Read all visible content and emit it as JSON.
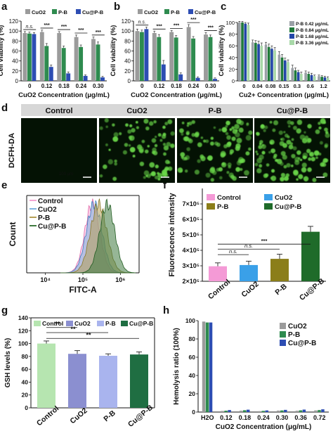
{
  "panels": {
    "a": "a",
    "b": "b",
    "c": "c",
    "d": "d",
    "e": "e",
    "f": "f",
    "g": "g",
    "h": "h"
  },
  "colors": {
    "cuo2": "#9b9b9b",
    "pb": "#2e8b4f",
    "cup": "#2d4db3",
    "c_pb042": "#9aa0a6",
    "c_pb084": "#1f7a3a",
    "c_pb168": "#2346a8",
    "c_pb336": "#a8d8a8",
    "f_control": "#f49ad6",
    "f_cuo2": "#3aa0e8",
    "f_pb": "#8b7e1a",
    "f_cup": "#1f6b2a",
    "g_control": "#b6e5b0",
    "g_cuo2": "#8b8fd0",
    "g_pb": "#a9b4ee",
    "g_cup": "#1f6e42",
    "e_control": "#f4a6d4",
    "e_cuo2": "#7fb3e0",
    "e_pb": "#b59f55",
    "e_cup": "#3f7a3f",
    "green_cell": "#6bd84a"
  },
  "panel_d": {
    "ylabel": "DCFH-DA",
    "columns": [
      "Control",
      "CuO2",
      "P-B",
      "Cu@P-B"
    ],
    "cell_density": [
      0,
      0.55,
      0.65,
      0.8
    ],
    "scalebar": "100 μm"
  },
  "chart_data": [
    {
      "panel": "a",
      "type": "bar",
      "ylabel": "Cell viability (%)",
      "xlabel": "CuO2 Concentration (μg/mL)",
      "categories": [
        "0",
        "0.12",
        "0.18",
        "0.24",
        "0.30"
      ],
      "ylim": [
        0,
        120
      ],
      "yticks": [
        0,
        20,
        40,
        60,
        80,
        100,
        120
      ],
      "series": [
        {
          "name": "CuO2",
          "values": [
            96,
            98,
            96,
            88,
            84
          ],
          "err": [
            3,
            4,
            3,
            4,
            4
          ]
        },
        {
          "name": "P-B",
          "values": [
            95,
            70,
            66,
            68,
            73
          ],
          "err": [
            3,
            5,
            4,
            4,
            5
          ]
        },
        {
          "name": "Cu@P-B",
          "values": [
            94,
            28,
            15,
            10,
            7
          ],
          "err": [
            3,
            4,
            3,
            2,
            2
          ]
        }
      ],
      "annotations": [
        "n.s.",
        "***",
        "***",
        "***",
        "***"
      ]
    },
    {
      "panel": "b",
      "type": "bar",
      "ylabel": "Cell viability (%)",
      "xlabel": "CuO2 Concentration (μg/mL)",
      "categories": [
        "0",
        "0.12",
        "0.18",
        "0.24",
        "0.30"
      ],
      "ylim": [
        0,
        120
      ],
      "yticks": [
        0,
        20,
        40,
        60,
        80,
        100,
        120
      ],
      "series": [
        {
          "name": "CuO2",
          "values": [
            100,
            96,
            98,
            108,
            93
          ],
          "err": [
            4,
            4,
            3,
            5,
            4
          ]
        },
        {
          "name": "P-B",
          "values": [
            98,
            88,
            87,
            85,
            88
          ],
          "err": [
            4,
            5,
            4,
            4,
            4
          ]
        },
        {
          "name": "Cu@P-B",
          "values": [
            104,
            33,
            13,
            6,
            4
          ],
          "err": [
            4,
            8,
            3,
            2,
            2
          ]
        }
      ],
      "annotations": [
        "n.s.",
        "***",
        "***",
        "***",
        "***"
      ]
    },
    {
      "panel": "c",
      "type": "bar",
      "ylabel": "Cell viability (%)",
      "xlabel": "Cu2+ Concentration (μg/mL)",
      "categories": [
        "0",
        "0.04",
        "0.08",
        "0.15",
        "0.3",
        "0.6",
        "1.2"
      ],
      "ylim": [
        0,
        100
      ],
      "yticks": [
        0,
        20,
        40,
        60,
        80,
        100
      ],
      "series": [
        {
          "name": "P-B 0.42 μg/mL",
          "values": [
            100,
            66,
            62,
            45,
            22,
            14,
            8
          ],
          "err": [
            2,
            4,
            4,
            5,
            5,
            3,
            2
          ]
        },
        {
          "name": "P-B 0.84 μg/mL",
          "values": [
            100,
            65,
            58,
            40,
            18,
            12,
            7
          ],
          "err": [
            2,
            4,
            5,
            5,
            4,
            3,
            2
          ]
        },
        {
          "name": "P-B 1.68 μg/mL",
          "values": [
            98,
            63,
            55,
            35,
            15,
            10,
            6
          ],
          "err": [
            2,
            5,
            5,
            4,
            3,
            3,
            2
          ]
        },
        {
          "name": "P-B 3.36 μg/mL",
          "values": [
            96,
            60,
            52,
            32,
            12,
            8,
            5
          ],
          "err": [
            3,
            5,
            5,
            4,
            3,
            2,
            2
          ]
        }
      ]
    },
    {
      "panel": "e",
      "type": "area",
      "xlabel": "FITC-A",
      "ylabel": "Count",
      "xscale": "log",
      "xticks": [
        "10⁴",
        "10⁵",
        "10⁶"
      ],
      "series": [
        {
          "name": "Control",
          "center_log": 5.25,
          "width": 0.2
        },
        {
          "name": "CuO2",
          "center_log": 5.3,
          "width": 0.21
        },
        {
          "name": "P-B",
          "center_log": 5.42,
          "width": 0.22
        },
        {
          "name": "Cu@P-B",
          "center_log": 5.65,
          "width": 0.2
        }
      ]
    },
    {
      "panel": "f",
      "type": "bar",
      "ylabel": "Fluorescence intensity",
      "categories": [
        "Control",
        "CuO2",
        "P-B",
        "Cu@P-B"
      ],
      "ylim": [
        200000,
        800000
      ],
      "yticks": [
        "2×10⁵",
        "3×10⁵",
        "4×10⁵",
        "5×10⁵",
        "6×10⁵",
        "7×10⁵"
      ],
      "values": [
        297000,
        305000,
        345000,
        520000
      ],
      "err": [
        22000,
        25000,
        30000,
        35000
      ],
      "annotations": [
        "n.s.",
        "n.s.",
        "***"
      ],
      "legend": [
        "Control",
        "CuO2",
        "P-B",
        "Cu@P-B"
      ]
    },
    {
      "panel": "g",
      "type": "bar",
      "ylabel": "GSH levels (%)",
      "categories": [
        "Control",
        "CuO2",
        "P-B",
        "Cu@P-B"
      ],
      "ylim": [
        0,
        140
      ],
      "yticks": [
        0,
        20,
        40,
        60,
        80,
        100,
        120,
        140
      ],
      "values": [
        100,
        84,
        81,
        83
      ],
      "err": [
        4,
        5,
        3,
        4
      ],
      "annotations": [
        "**",
        "**",
        "**"
      ],
      "legend": [
        "Control",
        "CuO2",
        "P-B",
        "Cu@P-B"
      ]
    },
    {
      "panel": "h",
      "type": "bar",
      "ylabel": "Hemolysis ratio (100%)",
      "xlabel": "CuO2 Concentration (μg/mL)",
      "categories": [
        "H2O",
        "0.12",
        "0.18",
        "0.24",
        "0.30",
        "0.36",
        "0.72"
      ],
      "ylim": [
        0,
        100
      ],
      "yticks": [
        0,
        20,
        40,
        60,
        80,
        100
      ],
      "series": [
        {
          "name": "CuO2",
          "values": [
            99,
            1.2,
            1.5,
            1.0,
            1.6,
            1.4,
            1.8
          ]
        },
        {
          "name": "P-B",
          "values": [
            98,
            1.5,
            2.0,
            1.3,
            1.8,
            1.9,
            2.2
          ]
        },
        {
          "name": "Cu@P-B",
          "values": [
            98,
            2.2,
            2.6,
            1.8,
            2.4,
            2.7,
            3.0
          ]
        }
      ]
    }
  ]
}
